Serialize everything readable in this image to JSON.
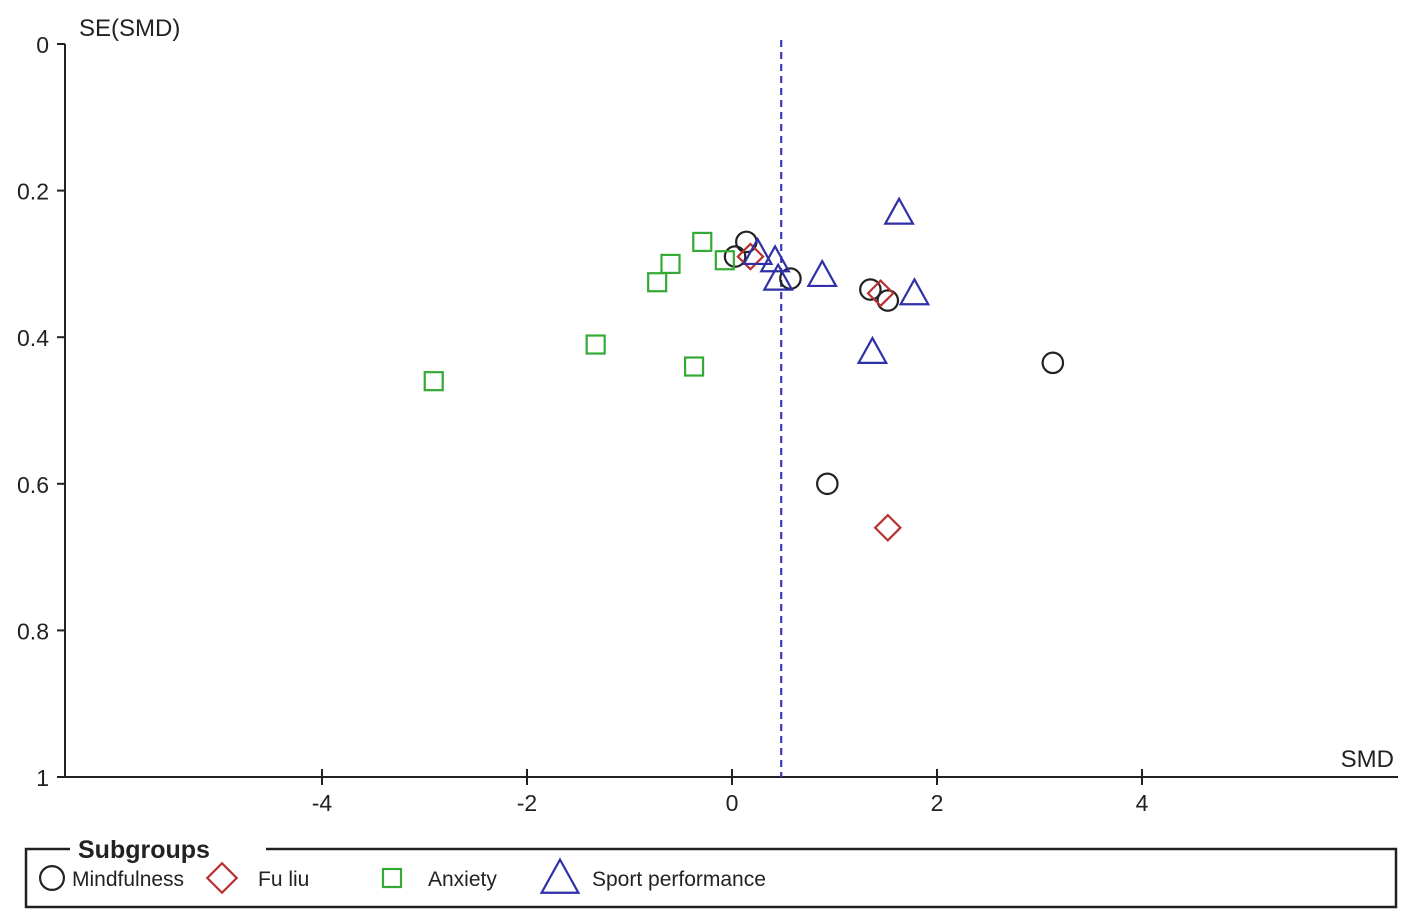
{
  "chart_data": {
    "type": "scatter",
    "xlabel": "SMD",
    "ylabel": "SE(SMD)",
    "xlim": [
      -6.2,
      6.3
    ],
    "ylim": [
      0,
      1
    ],
    "y_inverted": true,
    "xticks": [
      -4,
      -2,
      0,
      2,
      4
    ],
    "xtick_labels": [
      "-4",
      "-2",
      "0",
      "2",
      "4"
    ],
    "yticks": [
      0,
      0.2,
      0.4,
      0.6,
      0.8,
      1
    ],
    "ytick_labels": [
      "0",
      "0.2",
      "0.4",
      "0.6",
      "0.8",
      "1"
    ],
    "reference_line": {
      "x": 0.48,
      "style": "dashed",
      "color": "#3b3bb8"
    },
    "grid": false,
    "legend": {
      "title": "Subgroups",
      "placement": "bottom"
    },
    "series": [
      {
        "name": "Mindfulness",
        "marker": "circle",
        "color": "#222222",
        "points": [
          {
            "x": 0.14,
            "y": 0.27
          },
          {
            "x": 0.03,
            "y": 0.29
          },
          {
            "x": 0.57,
            "y": 0.32
          },
          {
            "x": 1.35,
            "y": 0.335
          },
          {
            "x": 1.52,
            "y": 0.35
          },
          {
            "x": 3.13,
            "y": 0.435
          },
          {
            "x": 0.93,
            "y": 0.6
          }
        ]
      },
      {
        "name": "Fu liu",
        "marker": "diamond",
        "color": "#b83030",
        "points": [
          {
            "x": 0.18,
            "y": 0.29
          },
          {
            "x": 1.45,
            "y": 0.34
          },
          {
            "x": 1.52,
            "y": 0.66
          }
        ]
      },
      {
        "name": "Anxiety",
        "marker": "square",
        "color": "#33aa33",
        "points": [
          {
            "x": -0.29,
            "y": 0.27
          },
          {
            "x": -0.07,
            "y": 0.295
          },
          {
            "x": -0.6,
            "y": 0.3
          },
          {
            "x": -0.73,
            "y": 0.325
          },
          {
            "x": -1.33,
            "y": 0.41
          },
          {
            "x": -0.37,
            "y": 0.44
          },
          {
            "x": -2.91,
            "y": 0.46
          }
        ]
      },
      {
        "name": "Sport performance",
        "marker": "triangle",
        "color": "#2f2fa8",
        "points": [
          {
            "x": 1.63,
            "y": 0.23
          },
          {
            "x": 0.25,
            "y": 0.285
          },
          {
            "x": 0.42,
            "y": 0.295
          },
          {
            "x": 0.45,
            "y": 0.32
          },
          {
            "x": 0.88,
            "y": 0.315
          },
          {
            "x": 1.78,
            "y": 0.34
          },
          {
            "x": 1.37,
            "y": 0.42
          }
        ]
      }
    ]
  }
}
